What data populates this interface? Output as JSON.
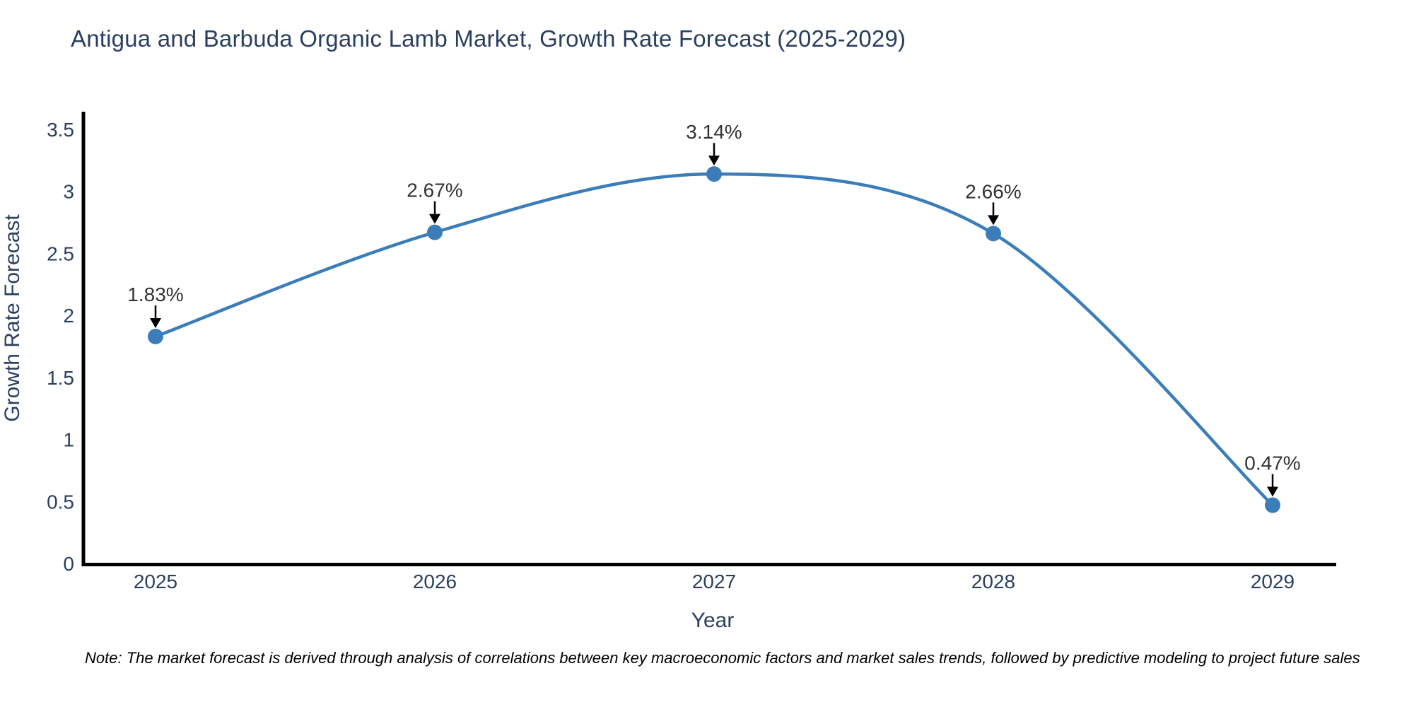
{
  "title": "Antigua and Barbuda Organic Lamb Market, Growth Rate Forecast (2025-2029)",
  "note": "Note: The market forecast is derived through analysis of correlations between key macroeconomic factors and market sales trends, followed by predictive modeling to project future sales",
  "chart_data": {
    "type": "line",
    "title": "Antigua and Barbuda Organic Lamb Market, Growth Rate Forecast (2025-2029)",
    "x": [
      2025,
      2026,
      2027,
      2028,
      2029
    ],
    "xticks": [
      "2025",
      "2026",
      "2027",
      "2028",
      "2029"
    ],
    "values": [
      1.83,
      2.67,
      3.14,
      2.66,
      0.47
    ],
    "point_labels": [
      "1.83%",
      "2.67%",
      "3.14%",
      "2.66%",
      "0.47%"
    ],
    "xlabel": "Year",
    "ylabel": "Growth Rate Forecast",
    "ylim": [
      0,
      3.5
    ],
    "yticks": [
      0,
      0.5,
      1,
      1.5,
      2,
      2.5,
      3,
      3.5
    ],
    "grid": false,
    "legend_position": "none",
    "line_shape": "spline",
    "colors": {
      "line": "#3b7db9",
      "marker": "#3b7db9",
      "title": "#2a3f5f",
      "axis_text": "#2a3f5f",
      "axis_line": "#000000",
      "annotation": "#333333",
      "annotation_arrow": "#000000",
      "note": "#000000",
      "background": "#ffffff"
    }
  }
}
